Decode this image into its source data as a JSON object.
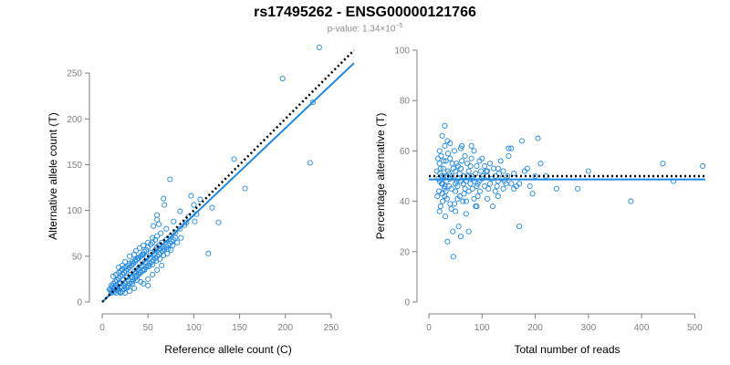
{
  "header": {
    "title": "rs17495262 - ENSG00000121766",
    "pvalue_label": "p-value: 1.34×10",
    "pvalue_exponent": "−5"
  },
  "colors": {
    "series": "#1e88e5",
    "reference_line": "#000000",
    "axis": "#7f7f7f"
  },
  "chart_data": [
    {
      "type": "scatter",
      "title": "",
      "xlabel": "Reference allele count (C)",
      "ylabel": "Alternative allele count (T)",
      "xlim": [
        0,
        275
      ],
      "ylim": [
        0,
        275
      ],
      "xticks": [
        0,
        50,
        100,
        150,
        200,
        250
      ],
      "yticks": [
        0,
        50,
        100,
        150,
        200,
        250
      ],
      "reference_line": {
        "style": "dotted",
        "x": [
          0,
          275
        ],
        "y": [
          0,
          275
        ]
      },
      "fit_line": {
        "style": "solid",
        "x": [
          0,
          275
        ],
        "y": [
          0,
          261
        ]
      },
      "points": [
        [
          237,
          278
        ],
        [
          197,
          244
        ],
        [
          230,
          218
        ],
        [
          227,
          152
        ],
        [
          156,
          124
        ],
        [
          144,
          156
        ],
        [
          120,
          103
        ],
        [
          127,
          87
        ],
        [
          116,
          53
        ],
        [
          74,
          134
        ],
        [
          107,
          112
        ],
        [
          97,
          116
        ],
        [
          100,
          106
        ],
        [
          94,
          93
        ],
        [
          92,
          87
        ],
        [
          101,
          88
        ],
        [
          103,
          96
        ],
        [
          85,
          99
        ],
        [
          67,
          113
        ],
        [
          68,
          106
        ],
        [
          60,
          95
        ],
        [
          60,
          90
        ],
        [
          56,
          83
        ],
        [
          70,
          80
        ],
        [
          64,
          75
        ],
        [
          60,
          72
        ],
        [
          58,
          68
        ],
        [
          55,
          65
        ],
        [
          53,
          63
        ],
        [
          50,
          60
        ],
        [
          48,
          57
        ],
        [
          46,
          55
        ],
        [
          44,
          52
        ],
        [
          42,
          50
        ],
        [
          40,
          48
        ],
        [
          38,
          46
        ],
        [
          36,
          44
        ],
        [
          34,
          42
        ],
        [
          32,
          40
        ],
        [
          30,
          38
        ],
        [
          28,
          36
        ],
        [
          26,
          34
        ],
        [
          24,
          32
        ],
        [
          22,
          30
        ],
        [
          20,
          28
        ],
        [
          18,
          26
        ],
        [
          16,
          24
        ],
        [
          14,
          22
        ],
        [
          12,
          20
        ],
        [
          10,
          18
        ],
        [
          12,
          15
        ],
        [
          14,
          14
        ],
        [
          16,
          13
        ],
        [
          18,
          12
        ],
        [
          20,
          11
        ],
        [
          22,
          12
        ],
        [
          24,
          14
        ],
        [
          26,
          16
        ],
        [
          28,
          18
        ],
        [
          30,
          20
        ],
        [
          32,
          22
        ],
        [
          34,
          24
        ],
        [
          36,
          26
        ],
        [
          38,
          28
        ],
        [
          40,
          30
        ],
        [
          42,
          32
        ],
        [
          44,
          34
        ],
        [
          46,
          36
        ],
        [
          48,
          38
        ],
        [
          50,
          40
        ],
        [
          52,
          42
        ],
        [
          54,
          44
        ],
        [
          56,
          46
        ],
        [
          58,
          48
        ],
        [
          60,
          50
        ],
        [
          62,
          52
        ],
        [
          64,
          54
        ],
        [
          66,
          56
        ],
        [
          68,
          58
        ],
        [
          70,
          60
        ],
        [
          72,
          62
        ],
        [
          74,
          64
        ],
        [
          76,
          66
        ],
        [
          78,
          68
        ],
        [
          80,
          70
        ],
        [
          45,
          20
        ],
        [
          50,
          25
        ],
        [
          55,
          30
        ],
        [
          60,
          35
        ],
        [
          65,
          40
        ],
        [
          35,
          15
        ],
        [
          30,
          12
        ],
        [
          25,
          10
        ],
        [
          20,
          10
        ],
        [
          15,
          10
        ],
        [
          10,
          12
        ],
        [
          8,
          14
        ],
        [
          12,
          28
        ],
        [
          15,
          30
        ],
        [
          18,
          32
        ],
        [
          20,
          34
        ],
        [
          22,
          36
        ],
        [
          25,
          38
        ],
        [
          28,
          40
        ],
        [
          30,
          42
        ],
        [
          33,
          44
        ],
        [
          36,
          46
        ],
        [
          39,
          48
        ],
        [
          42,
          50
        ],
        [
          45,
          52
        ],
        [
          60,
          60
        ],
        [
          65,
          65
        ],
        [
          70,
          68
        ],
        [
          75,
          72
        ],
        [
          80,
          76
        ],
        [
          85,
          80
        ],
        [
          90,
          84
        ],
        [
          63,
          58
        ],
        [
          57,
          52
        ],
        [
          52,
          48
        ],
        [
          47,
          44
        ],
        [
          43,
          40
        ],
        [
          39,
          36
        ],
        [
          35,
          33
        ],
        [
          31,
          30
        ],
        [
          27,
          27
        ],
        [
          23,
          24
        ],
        [
          19,
          21
        ],
        [
          15,
          18
        ],
        [
          11,
          16
        ],
        [
          9,
          13
        ],
        [
          13,
          11
        ],
        [
          17,
          15
        ],
        [
          21,
          17
        ],
        [
          25,
          21
        ],
        [
          29,
          23
        ],
        [
          33,
          27
        ],
        [
          37,
          29
        ],
        [
          41,
          33
        ],
        [
          46,
          35
        ],
        [
          51,
          39
        ],
        [
          55,
          41
        ],
        [
          59,
          45
        ],
        [
          63,
          47
        ],
        [
          67,
          51
        ],
        [
          71,
          53
        ],
        [
          75,
          57
        ],
        [
          37,
          56
        ],
        [
          41,
          59
        ],
        [
          48,
          50
        ],
        [
          53,
          54
        ],
        [
          58,
          57
        ],
        [
          62,
          62
        ],
        [
          66,
          60
        ],
        [
          72,
          58
        ],
        [
          77,
          62
        ],
        [
          82,
          65
        ],
        [
          86,
          70
        ],
        [
          30,
          50
        ],
        [
          35,
          52
        ],
        [
          25,
          44
        ],
        [
          22,
          40
        ],
        [
          18,
          38
        ],
        [
          45,
          62
        ],
        [
          50,
          65
        ],
        [
          55,
          70
        ],
        [
          62,
          85
        ],
        [
          78,
          88
        ],
        [
          50,
          18
        ],
        [
          42,
          22
        ],
        [
          38,
          24
        ],
        [
          33,
          20
        ],
        [
          28,
          16
        ],
        [
          24,
          18
        ],
        [
          20,
          20
        ],
        [
          16,
          16
        ],
        [
          12,
          12
        ],
        [
          10,
          10
        ]
      ]
    },
    {
      "type": "scatter",
      "title": "",
      "xlabel": "Total number of reads",
      "ylabel": "Percentage alternative (T)",
      "xlim": [
        0,
        520
      ],
      "ylim": [
        0,
        100
      ],
      "xticks": [
        0,
        100,
        200,
        300,
        400,
        500
      ],
      "yticks": [
        0,
        20,
        40,
        60,
        80,
        100
      ],
      "reference_line": {
        "style": "dotted",
        "x": [
          0,
          520
        ],
        "y": [
          50,
          50
        ]
      },
      "fit_line": {
        "style": "solid",
        "x": [
          0,
          520
        ],
        "y": [
          48.7,
          48.7
        ]
      },
      "points": [
        [
          515,
          54
        ],
        [
          460,
          48
        ],
        [
          440,
          55
        ],
        [
          380,
          40
        ],
        [
          300,
          52
        ],
        [
          280,
          45
        ],
        [
          240,
          45
        ],
        [
          220,
          50
        ],
        [
          210,
          55
        ],
        [
          205,
          65
        ],
        [
          200,
          50
        ],
        [
          195,
          43
        ],
        [
          190,
          46
        ],
        [
          185,
          53
        ],
        [
          180,
          52
        ],
        [
          175,
          64
        ],
        [
          170,
          30
        ],
        [
          165,
          46
        ],
        [
          160,
          51
        ],
        [
          155,
          61
        ],
        [
          150,
          61
        ],
        [
          145,
          47
        ],
        [
          140,
          45
        ],
        [
          135,
          56
        ],
        [
          130,
          53
        ],
        [
          125,
          44
        ],
        [
          120,
          38
        ],
        [
          115,
          55
        ],
        [
          110,
          50
        ],
        [
          105,
          46
        ],
        [
          100,
          57
        ],
        [
          98,
          52
        ],
        [
          95,
          48
        ],
        [
          92,
          42
        ],
        [
          90,
          54
        ],
        [
          88,
          38
        ],
        [
          85,
          60
        ],
        [
          82,
          45
        ],
        [
          80,
          50
        ],
        [
          78,
          47
        ],
        [
          75,
          52
        ],
        [
          72,
          55
        ],
        [
          70,
          35
        ],
        [
          68,
          58
        ],
        [
          66,
          43
        ],
        [
          64,
          40
        ],
        [
          62,
          62
        ],
        [
          60,
          48
        ],
        [
          58,
          51
        ],
        [
          56,
          30
        ],
        [
          54,
          46
        ],
        [
          52,
          55
        ],
        [
          50,
          44
        ],
        [
          48,
          60
        ],
        [
          46,
          18
        ],
        [
          44,
          50
        ],
        [
          42,
          37
        ],
        [
          40,
          57
        ],
        [
          38,
          46
        ],
        [
          36,
          52
        ],
        [
          35,
          64
        ],
        [
          34,
          41
        ],
        [
          33,
          48
        ],
        [
          32,
          56
        ],
        [
          31,
          34
        ],
        [
          30,
          62
        ],
        [
          29,
          45
        ],
        [
          28,
          50
        ],
        [
          27,
          53
        ],
        [
          26,
          40
        ],
        [
          25,
          66
        ],
        [
          24,
          47
        ],
        [
          23,
          58
        ],
        [
          22,
          38
        ],
        [
          21,
          51
        ],
        [
          20,
          55
        ],
        [
          19,
          44
        ],
        [
          18,
          49
        ],
        [
          17,
          57
        ],
        [
          16,
          42
        ],
        [
          15,
          52
        ],
        [
          30,
          70
        ],
        [
          35,
          24
        ],
        [
          45,
          28
        ],
        [
          60,
          26
        ],
        [
          75,
          28
        ],
        [
          20,
          36
        ],
        [
          40,
          39
        ],
        [
          55,
          54
        ],
        [
          65,
          47
        ],
        [
          85,
          48
        ],
        [
          95,
          56
        ],
        [
          110,
          41
        ],
        [
          125,
          50
        ],
        [
          140,
          52
        ],
        [
          50,
          52
        ],
        [
          55,
          49
        ],
        [
          60,
          53
        ],
        [
          65,
          50
        ],
        [
          70,
          48
        ],
        [
          75,
          44
        ],
        [
          80,
          57
        ],
        [
          85,
          41
        ],
        [
          90,
          46
        ],
        [
          100,
          49
        ],
        [
          105,
          54
        ],
        [
          115,
          47
        ],
        [
          130,
          48
        ],
        [
          150,
          58
        ],
        [
          170,
          47
        ],
        [
          25,
          43
        ],
        [
          28,
          56
        ],
        [
          32,
          44
        ],
        [
          36,
          59
        ],
        [
          38,
          51
        ],
        [
          42,
          45
        ],
        [
          46,
          53
        ],
        [
          48,
          39
        ],
        [
          52,
          48
        ],
        [
          58,
          42
        ],
        [
          62,
          56
        ],
        [
          68,
          45
        ],
        [
          72,
          50
        ],
        [
          78,
          54
        ],
        [
          82,
          49
        ],
        [
          88,
          51
        ],
        [
          92,
          47
        ],
        [
          96,
          44
        ],
        [
          102,
          50
        ],
        [
          108,
          52
        ],
        [
          112,
          45
        ],
        [
          118,
          49
        ],
        [
          122,
          53
        ],
        [
          128,
          46
        ],
        [
          132,
          51
        ],
        [
          138,
          49
        ],
        [
          142,
          48
        ],
        [
          148,
          50
        ],
        [
          155,
          47
        ],
        [
          160,
          45
        ],
        [
          20,
          48
        ],
        [
          22,
          53
        ],
        [
          24,
          50
        ],
        [
          26,
          47
        ],
        [
          30,
          46
        ],
        [
          34,
          50
        ],
        [
          40,
          49
        ],
        [
          44,
          55
        ],
        [
          50,
          47
        ],
        [
          54,
          41
        ],
        [
          20,
          60
        ],
        [
          40,
          63
        ],
        [
          60,
          61
        ],
        [
          80,
          62
        ],
        [
          30,
          42
        ],
        [
          50,
          36
        ],
        [
          70,
          40
        ],
        [
          90,
          38
        ],
        [
          110,
          52
        ],
        [
          130,
          42
        ]
      ]
    }
  ]
}
